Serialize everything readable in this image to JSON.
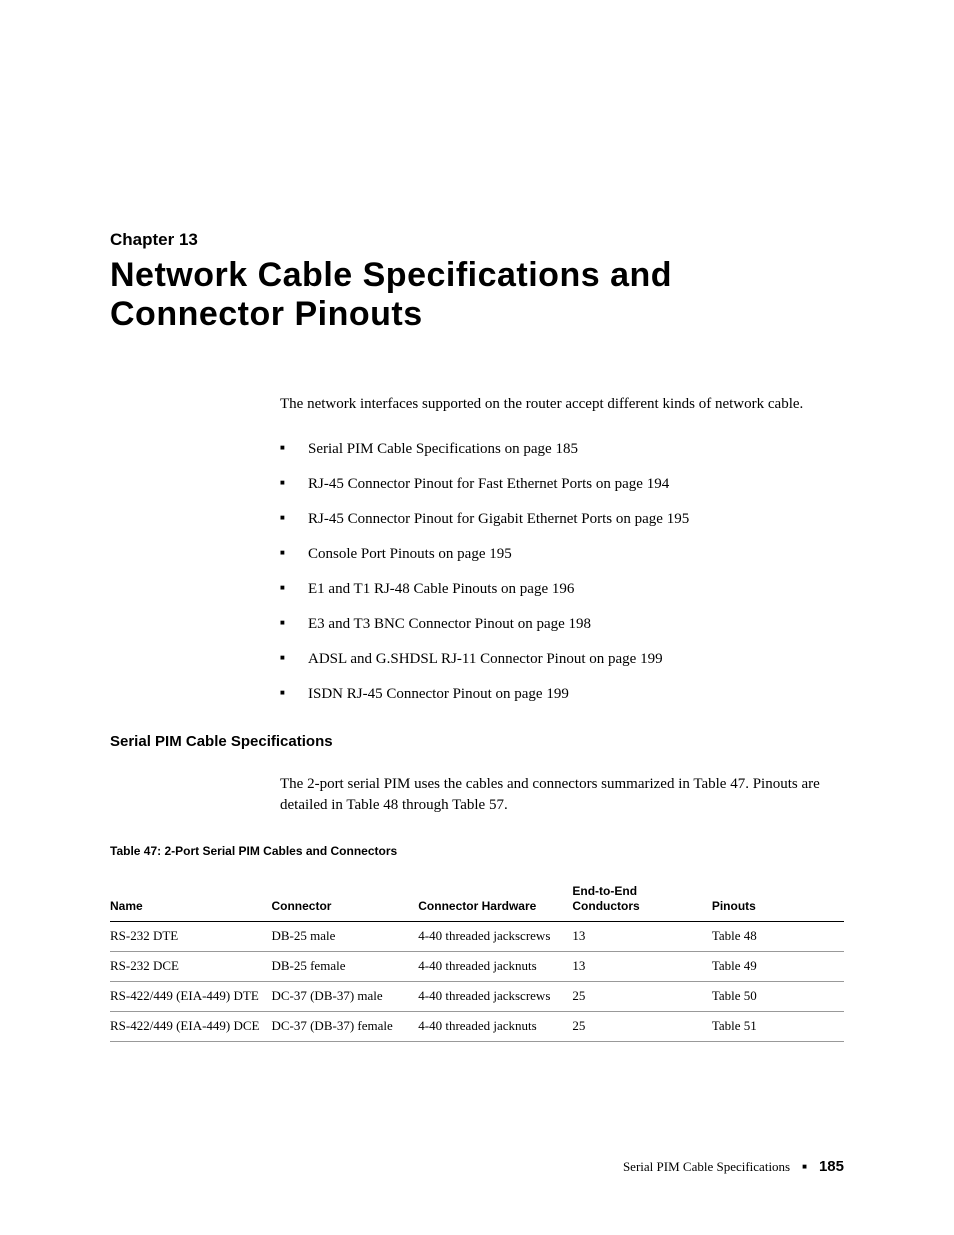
{
  "chapter": {
    "label": "Chapter 13",
    "title": "Network Cable Specifications and Connector Pinouts"
  },
  "intro": "The network interfaces supported on the router accept different kinds of network cable.",
  "bullets": [
    "Serial PIM Cable Specifications on page 185",
    "RJ-45 Connector Pinout for Fast Ethernet Ports on page 194",
    "RJ-45 Connector Pinout for Gigabit Ethernet Ports on page 195",
    "Console Port Pinouts on page 195",
    "E1 and T1 RJ-48 Cable Pinouts on page 196",
    "E3 and T3 BNC Connector Pinout on page 198",
    "ADSL and G.SHDSL RJ-11 Connector Pinout on page 199",
    "ISDN RJ-45 Connector Pinout on page 199"
  ],
  "section": {
    "heading": "Serial PIM Cable Specifications",
    "body": "The 2-port serial PIM uses the cables and connectors summarized in Table 47. Pinouts are detailed in Table 48 through Table 57."
  },
  "table": {
    "caption": "Table 47:  2-Port Serial PIM Cables and Connectors",
    "columns": [
      "Name",
      "Connector",
      "Connector Hardware",
      "End-to-End Conductors",
      "Pinouts"
    ],
    "rows": [
      [
        "RS-232 DTE",
        "DB-25 male",
        "4-40 threaded jackscrews",
        "13",
        "Table 48"
      ],
      [
        "RS-232 DCE",
        "DB-25 female",
        "4-40 threaded jacknuts",
        "13",
        "Table 49"
      ],
      [
        "RS-422/449 (EIA-449) DTE",
        "DC-37 (DB-37) male",
        "4-40 threaded jackscrews",
        "25",
        "Table 50"
      ],
      [
        "RS-422/449 (EIA-449) DCE",
        "DC-37 (DB-37) female",
        "4-40 threaded jacknuts",
        "25",
        "Table 51"
      ]
    ]
  },
  "footer": {
    "text": "Serial PIM Cable Specifications",
    "page": "185"
  },
  "colors": {
    "text": "#000000",
    "background": "#ffffff",
    "row_border": "#999999"
  },
  "typography": {
    "body_family": "Georgia, Times New Roman, serif",
    "heading_family": "Arial Black, Helvetica Neue, Arial, sans-serif",
    "chapter_title_size": 34,
    "chapter_label_size": 17,
    "body_size": 15,
    "section_heading_size": 15,
    "table_caption_size": 12,
    "table_header_size": 12,
    "table_cell_size": 13
  }
}
